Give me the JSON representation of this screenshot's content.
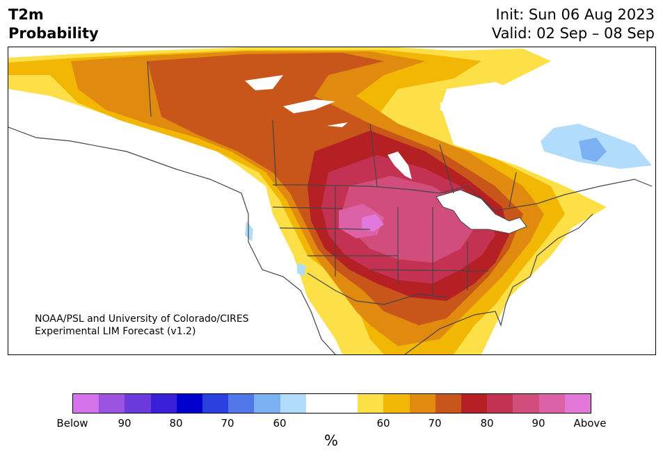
{
  "title": {
    "line1": "T2m",
    "line2": "Probability"
  },
  "init": {
    "line1": "Init: Sun 06 Aug 2023",
    "line2": "Valid: 02 Sep – 08 Sep"
  },
  "credit": {
    "line1": "NOAA/PSL and University of Colorado/CIRES",
    "line2": "Experimental LIM Forecast (v1.2)"
  },
  "colorbar": {
    "unit": "%",
    "colors": [
      "#d473eb",
      "#9b52e0",
      "#6c39dc",
      "#3a1fd8",
      "#0000cc",
      "#2a3fdd",
      "#5176e8",
      "#79b1f2",
      "#b1dcfb",
      "#ffffff",
      "#ffffff",
      "#fde047",
      "#f2b705",
      "#e08a10",
      "#c85519",
      "#b52024",
      "#c43253",
      "#d14d7b",
      "#db62a6",
      "#e378db"
    ],
    "tick_labels": [
      "Below",
      "90",
      "80",
      "70",
      "60",
      "60",
      "70",
      "80",
      "90",
      "Above"
    ]
  },
  "legend_colors": {
    "above_60": "#fde047",
    "above_70": "#e08a10",
    "above_80": "#b52024",
    "above_90": "#d14d7b",
    "below_60": "#b1dcfb",
    "below_70": "#79b1f2"
  }
}
